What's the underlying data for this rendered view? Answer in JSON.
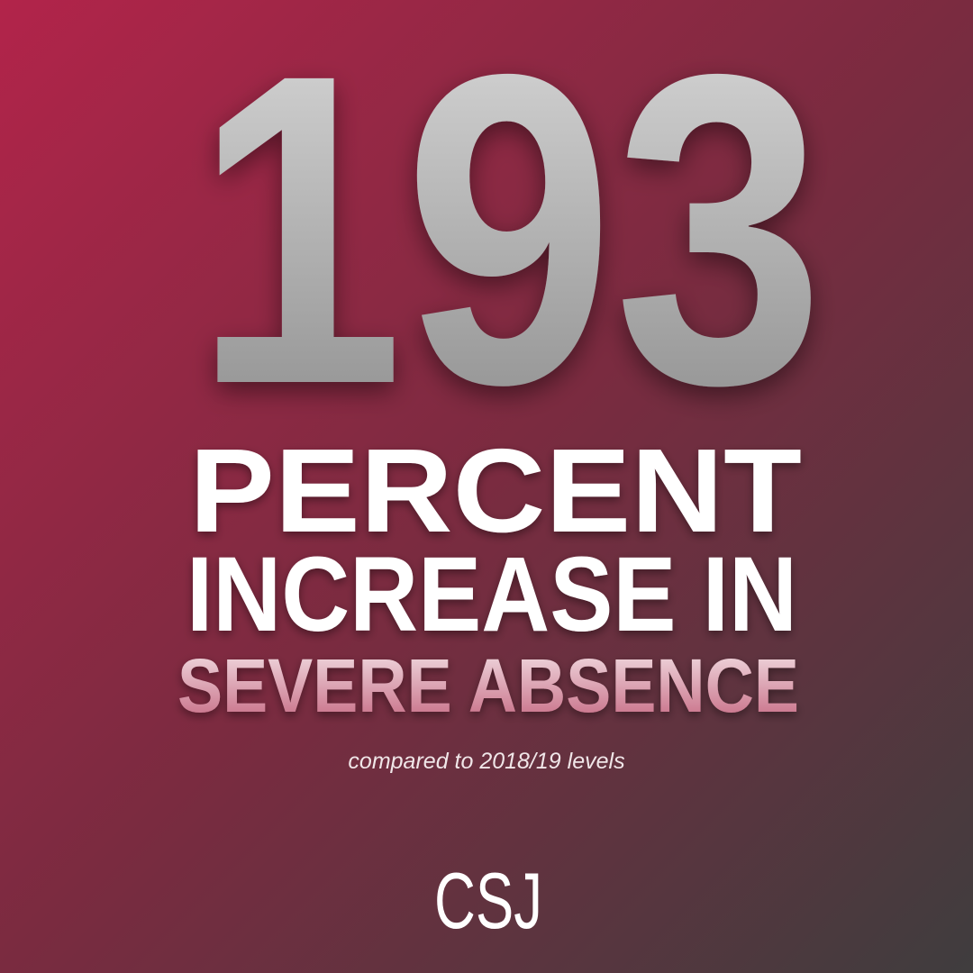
{
  "headline": {
    "number": "193",
    "line1": "PERCENT",
    "line2": "INCREASE IN",
    "line3": "SEVERE ABSENCE"
  },
  "note": "compared to 2018/19 levels",
  "logo": "CSJ"
}
